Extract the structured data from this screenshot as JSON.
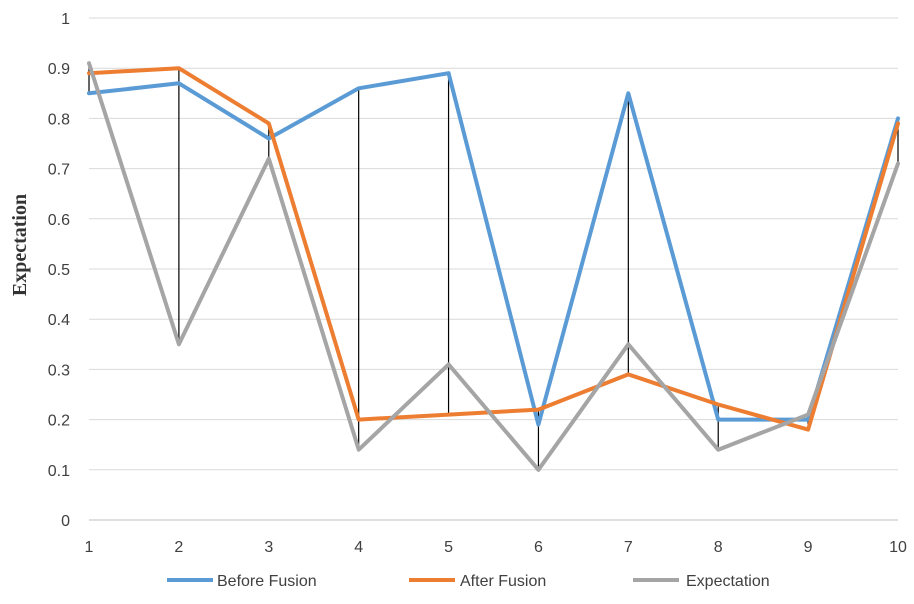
{
  "chart_data": {
    "type": "line",
    "title": "",
    "xlabel": "",
    "ylabel": "Expectation",
    "x": [
      1,
      2,
      3,
      4,
      5,
      6,
      7,
      8,
      9,
      10
    ],
    "xlim": [
      1,
      10
    ],
    "ylim": [
      0,
      1
    ],
    "x_ticks": [
      "1",
      "2",
      "3",
      "4",
      "5",
      "6",
      "7",
      "8",
      "9",
      "10"
    ],
    "y_ticks": [
      "0",
      "0.1",
      "0.2",
      "0.3",
      "0.4",
      "0.5",
      "0.6",
      "0.7",
      "0.8",
      "0.9",
      "1"
    ],
    "grid": true,
    "legend_position": "bottom",
    "drop_lines": true,
    "series": [
      {
        "name": "Before Fusion",
        "color": "#5B9BD5",
        "values": [
          0.85,
          0.87,
          0.76,
          0.86,
          0.89,
          0.19,
          0.85,
          0.2,
          0.2,
          0.8
        ]
      },
      {
        "name": "After Fusion",
        "color": "#ED7D31",
        "values": [
          0.89,
          0.9,
          0.79,
          0.2,
          0.21,
          0.22,
          0.29,
          0.23,
          0.18,
          0.79
        ]
      },
      {
        "name": "Expectation",
        "color": "#A5A5A5",
        "values": [
          0.91,
          0.35,
          0.72,
          0.14,
          0.31,
          0.1,
          0.35,
          0.14,
          0.21,
          0.71
        ]
      }
    ]
  }
}
